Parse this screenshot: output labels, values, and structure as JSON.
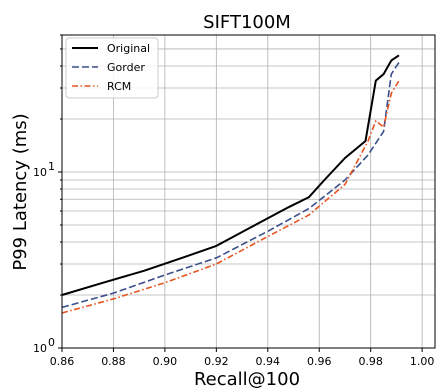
{
  "chart_data": {
    "type": "line",
    "title": "SIFT100M",
    "xlabel": "Recall@100",
    "ylabel": "P99 Latency (ms)",
    "xlim": [
      0.86,
      1.005
    ],
    "ylim": [
      1,
      60
    ],
    "yscale": "log",
    "grid": true,
    "legend_position": "top-left",
    "x_ticks": [
      "0.86",
      "0.88",
      "0.90",
      "0.92",
      "0.94",
      "0.96",
      "0.98",
      "1.00"
    ],
    "y_tick_labels": [
      {
        "value": 1,
        "base": "10",
        "exp": "0"
      },
      {
        "value": 10,
        "base": "10",
        "exp": "1"
      }
    ],
    "series": [
      {
        "name": "Original",
        "color": "#000000",
        "dash": "solid",
        "x": [
          0.86,
          0.876,
          0.892,
          0.908,
          0.92,
          0.934,
          0.948,
          0.956,
          0.962,
          0.97,
          0.978,
          0.982,
          0.985,
          0.988,
          0.991
        ],
        "y": [
          2.0,
          2.35,
          2.75,
          3.3,
          3.8,
          4.9,
          6.3,
          7.2,
          9.0,
          12.0,
          15.0,
          33.0,
          36.0,
          43.0,
          46.0
        ]
      },
      {
        "name": "Gorder",
        "color": "#3a4f8a",
        "dash": "dashed",
        "x": [
          0.86,
          0.88,
          0.9,
          0.92,
          0.94,
          0.956,
          0.97,
          0.979,
          0.985,
          0.988,
          0.991
        ],
        "y": [
          1.7,
          2.05,
          2.6,
          3.25,
          4.6,
          6.2,
          9.0,
          12.5,
          17.0,
          36.0,
          42.0
        ]
      },
      {
        "name": "RCM",
        "color": "#e8531f",
        "dash": "dashdot",
        "x": [
          0.86,
          0.88,
          0.9,
          0.92,
          0.94,
          0.956,
          0.97,
          0.979,
          0.982,
          0.985,
          0.988,
          0.991
        ],
        "y": [
          1.58,
          1.9,
          2.35,
          3.0,
          4.3,
          5.7,
          8.5,
          15.0,
          19.5,
          18.0,
          28.0,
          33.0
        ]
      }
    ]
  }
}
